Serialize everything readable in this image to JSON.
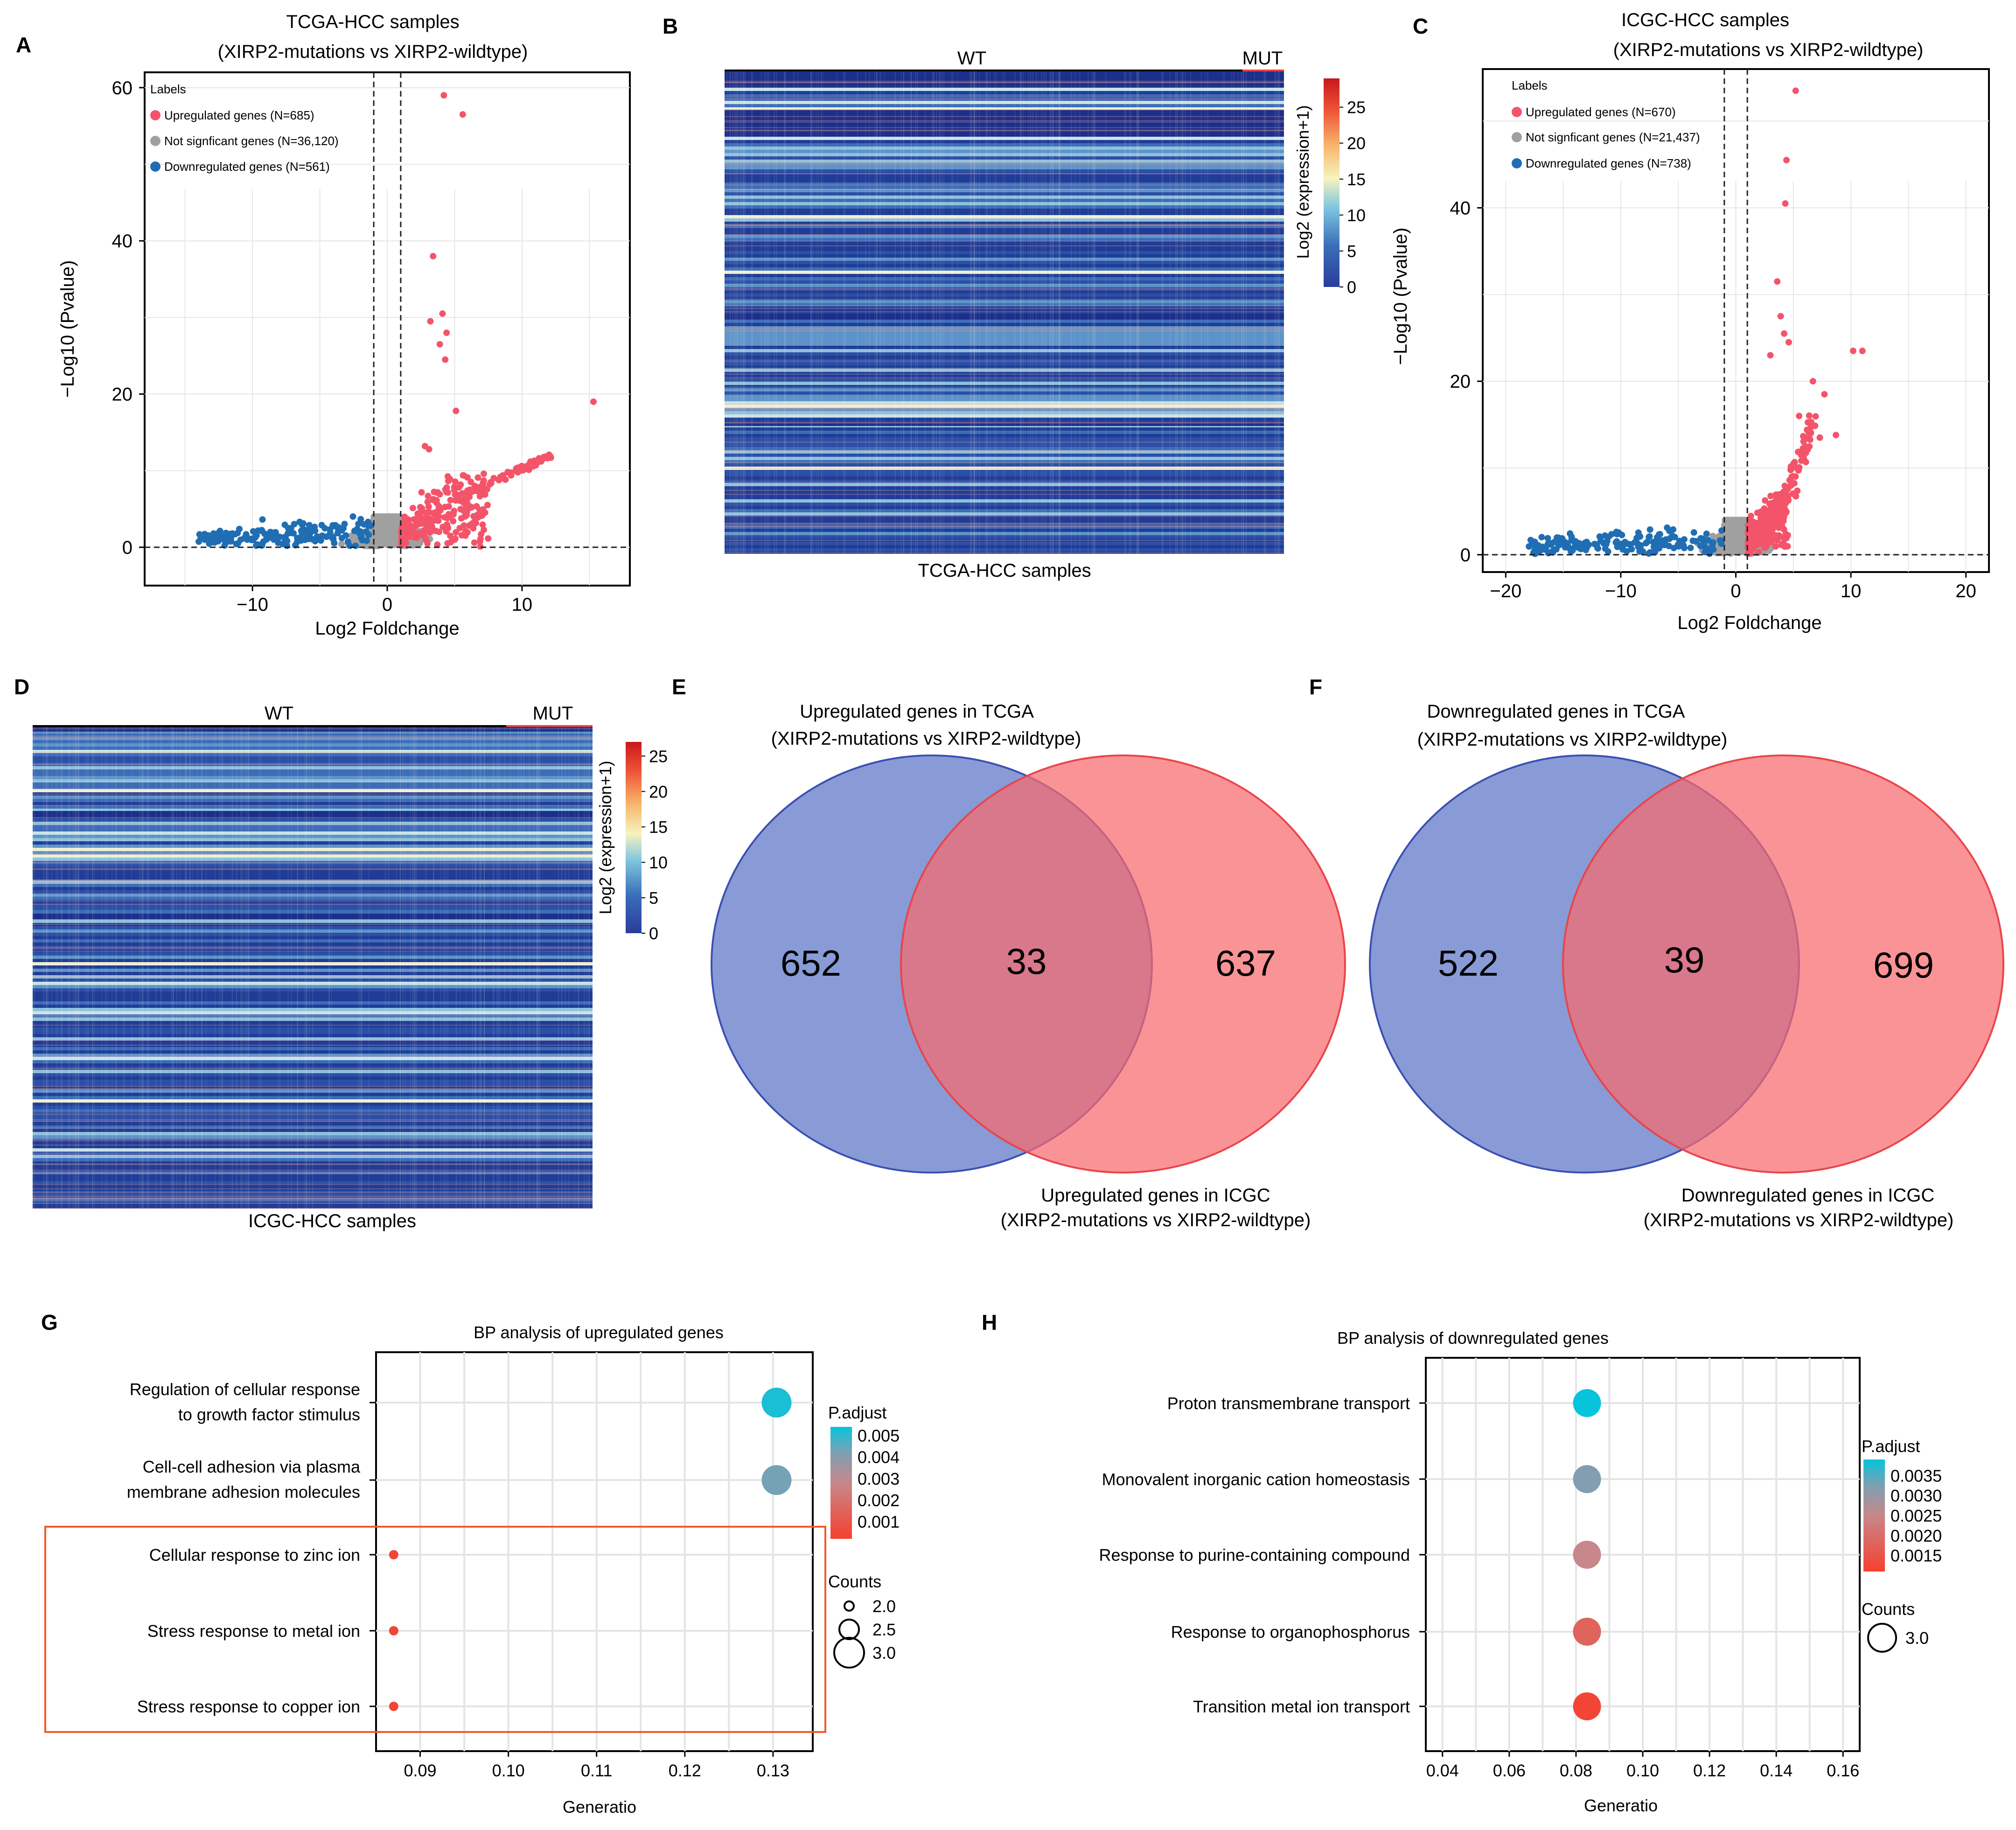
{
  "panels": {
    "A": {
      "letter": "A"
    },
    "B": {
      "letter": "B"
    },
    "C": {
      "letter": "C"
    },
    "D": {
      "letter": "D"
    },
    "E": {
      "letter": "E"
    },
    "F": {
      "letter": "F"
    },
    "G": {
      "letter": "G"
    },
    "H": {
      "letter": "H"
    }
  },
  "colors": {
    "up": "#f3546a",
    "ns": "#a0a0a0",
    "down": "#1f6eb4",
    "venn_blue": "#5a74c6",
    "venn_red": "#f86a6e",
    "highlight_box": "#f05a2a"
  },
  "chart_data": [
    {
      "id": "A",
      "type": "scatter",
      "title": "TCGA-HCC samples",
      "subtitle": "(XIRP2-mutations vs XIRP2-wildtype)",
      "xlabel": "Log2 Foldchange",
      "ylabel": "−Log10 (Pvalue)",
      "xlim": [
        -18,
        18
      ],
      "ylim": [
        -5,
        62
      ],
      "xticks": [
        -10,
        0,
        10
      ],
      "xtick_labels": [
        "−10",
        "0",
        "10"
      ],
      "yticks": [
        0,
        20,
        40,
        60
      ],
      "ytick_labels": [
        "0",
        "20",
        "40",
        "60"
      ],
      "vlines": [
        -1,
        1
      ],
      "hline": 0,
      "legend_title": "Labels",
      "legend": [
        "Upregulated genes (N=685)",
        "Not signficant genes (N=36,120)",
        "Downregulated genes (N=561)"
      ],
      "highlight_points": [
        [
          4.2,
          59
        ],
        [
          5.6,
          56.5
        ],
        [
          15.3,
          19
        ],
        [
          3.4,
          38
        ],
        [
          4.1,
          30.5
        ],
        [
          3.2,
          29.5
        ],
        [
          4.4,
          28
        ],
        [
          3.9,
          26.5
        ],
        [
          4.3,
          24.5
        ],
        [
          5.1,
          17.8
        ],
        [
          2.8,
          13.2
        ],
        [
          3.1,
          12.8
        ]
      ]
    },
    {
      "id": "B",
      "type": "heatmap",
      "groups": [
        "WT",
        "MUT"
      ],
      "xlabel": "TCGA-HCC samples",
      "colorbar_label": "Log2 (expression+1)",
      "colorbar_range": [
        0,
        29
      ],
      "colorbar_ticks": [
        "0",
        "5",
        "10",
        "15",
        "20",
        "25"
      ]
    },
    {
      "id": "C",
      "type": "scatter",
      "title": "ICGC-HCC samples",
      "subtitle": "(XIRP2-mutations vs XIRP2-wildtype)",
      "xlabel": "Log2 Foldchange",
      "ylabel": "−Log10 (Pvalue)",
      "xlim": [
        -22,
        22
      ],
      "ylim": [
        -2,
        56
      ],
      "xticks": [
        -20,
        -10,
        0,
        10,
        20
      ],
      "xtick_labels": [
        "−20",
        "−10",
        "0",
        "10",
        "20"
      ],
      "yticks": [
        0,
        20,
        40
      ],
      "ytick_labels": [
        "0",
        "20",
        "40"
      ],
      "vlines": [
        -1,
        1
      ],
      "hline": 0,
      "legend_title": "Labels",
      "legend": [
        "Upregulated genes (N=670)",
        "Not signficant genes (N=21,437)",
        "Downregulated genes (N=738)"
      ],
      "highlight_points": [
        [
          5.2,
          53.5
        ],
        [
          4.4,
          45.5
        ],
        [
          4.3,
          40.5
        ],
        [
          3.6,
          31.5
        ],
        [
          3.9,
          27.5
        ],
        [
          4.2,
          25.5
        ],
        [
          4.6,
          24.5
        ],
        [
          10.2,
          23.5
        ],
        [
          11.0,
          23.5
        ],
        [
          3.0,
          23.0
        ],
        [
          6.7,
          20.0
        ],
        [
          7.7,
          18.5
        ],
        [
          5.5,
          16.0
        ],
        [
          6.3,
          14.2
        ],
        [
          7.3,
          13.5
        ],
        [
          8.7,
          13.8
        ]
      ]
    },
    {
      "id": "D",
      "type": "heatmap",
      "groups": [
        "WT",
        "MUT"
      ],
      "xlabel": "ICGC-HCC samples",
      "colorbar_label": "Log2 (expression+1)",
      "colorbar_range": [
        0,
        27
      ],
      "colorbar_ticks": [
        "0",
        "5",
        "10",
        "15",
        "20",
        "25"
      ]
    },
    {
      "id": "E",
      "type": "venn",
      "set_a_label": "Upregulated genes in TCGA",
      "set_a_sub": "(XIRP2-mutations vs XIRP2-wildtype)",
      "set_b_label": "Upregulated genes in ICGC",
      "set_b_sub": "(XIRP2-mutations vs XIRP2-wildtype)",
      "only_a": "652",
      "overlap": "33",
      "only_b": "637"
    },
    {
      "id": "F",
      "type": "venn",
      "set_a_label": "Downregulated genes in TCGA",
      "set_a_sub": "(XIRP2-mutations vs XIRP2-wildtype)",
      "set_b_label": "Downregulated genes in ICGC",
      "set_b_sub": "(XIRP2-mutations vs XIRP2-wildtype)",
      "only_a": "522",
      "overlap": "39",
      "only_b": "699"
    },
    {
      "id": "G",
      "type": "scatter",
      "title": "BP analysis of upregulated genes",
      "xlabel": "Generatio",
      "xlim": [
        0.085,
        0.1345
      ],
      "xticks": [
        0.09,
        0.1,
        0.11,
        0.12,
        0.13
      ],
      "xtick_labels": [
        "0.09",
        "0.10",
        "0.11",
        "0.12",
        "0.13"
      ],
      "categories": [
        [
          "Regulation of cellular response",
          "to growth factor stimulus"
        ],
        [
          "Cell-cell adhesion via plasma",
          "membrane adhesion molecules"
        ],
        [
          "Cellular response to zinc ion"
        ],
        [
          "Stress response to metal ion"
        ],
        [
          "Stress response to copper ion"
        ]
      ],
      "values": [
        0.1304,
        0.1304,
        0.087,
        0.087,
        0.087
      ],
      "counts": [
        3,
        3,
        2,
        2,
        2
      ],
      "p_adjust": [
        0.0052,
        0.0043,
        0.0004,
        0.0004,
        0.0004
      ],
      "color_title": "P.adjust",
      "color_range": [
        0.0002,
        0.0054
      ],
      "color_ticks": [
        0.005,
        0.004,
        0.003,
        0.002,
        0.001
      ],
      "color_tick_labels": [
        "0.005",
        "0.004",
        "0.003",
        "0.002",
        "0.001"
      ],
      "size_title": "Counts",
      "size_labels": [
        "2.0",
        "2.5",
        "3.0"
      ],
      "size_values": [
        2.0,
        2.5,
        3.0
      ],
      "highlighted": [
        "Cellular response to zinc ion",
        "Stress response to metal ion",
        "Stress response to copper ion"
      ]
    },
    {
      "id": "H",
      "type": "scatter",
      "title": "BP analysis of downregulated genes",
      "xlabel": "Generatio",
      "xlim": [
        0.035,
        0.165
      ],
      "xticks": [
        0.04,
        0.06,
        0.08,
        0.1,
        0.12,
        0.14,
        0.16
      ],
      "xtick_labels": [
        "0.04",
        "0.06",
        "0.08",
        "0.10",
        "0.12",
        "0.14",
        "0.16"
      ],
      "categories": [
        [
          "Proton transmembrane transport"
        ],
        [
          "Monovalent inorganic cation  homeostasis"
        ],
        [
          "Response to purine-containing compound"
        ],
        [
          "Response to organophosphorus"
        ],
        [
          "Transition metal ion transport"
        ]
      ],
      "values": [
        0.0833,
        0.0833,
        0.0833,
        0.0833,
        0.0833
      ],
      "counts": [
        3,
        3,
        3,
        3,
        3
      ],
      "p_adjust": [
        0.0039,
        0.0032,
        0.0025,
        0.0018,
        0.0012
      ],
      "color_title": "P.adjust",
      "color_range": [
        0.0011,
        0.0039
      ],
      "color_ticks": [
        0.0035,
        0.003,
        0.0025,
        0.002,
        0.0015
      ],
      "color_tick_labels": [
        "0.0035",
        "0.0030",
        "0.0025",
        "0.0020",
        "0.0015"
      ],
      "size_title": "Counts",
      "size_labels": [
        "3.0"
      ],
      "size_values": [
        3.0
      ]
    }
  ]
}
